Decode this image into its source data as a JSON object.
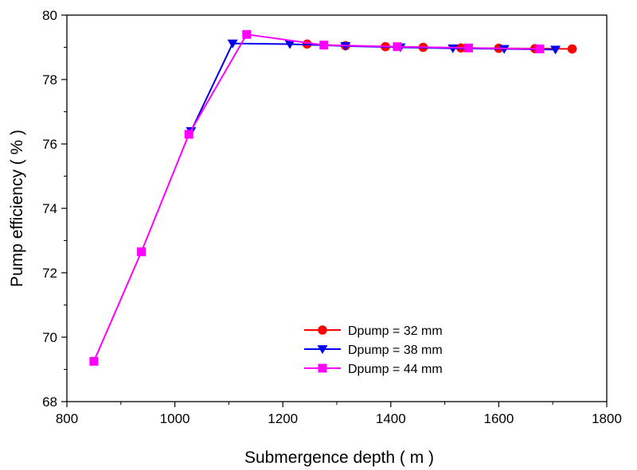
{
  "chart_data": {
    "type": "line",
    "xlabel": "Submergence depth ( m )",
    "ylabel": "Pump efficiency ( % )",
    "xlim": [
      800,
      1800
    ],
    "ylim": [
      68,
      80
    ],
    "xticks": [
      "800",
      "1000",
      "1200",
      "1400",
      "1600",
      "1800"
    ],
    "yticks": [
      "68",
      "70",
      "72",
      "74",
      "76",
      "78",
      "80"
    ],
    "grid": false,
    "legend_position": "lower-right",
    "series": [
      {
        "name": "Dpump = 32 mm",
        "color": "#ff0000",
        "marker": "circle",
        "x": [
          1245,
          1316,
          1390,
          1460,
          1530,
          1600,
          1667,
          1736
        ],
        "y": [
          79.1,
          79.05,
          79.02,
          79.0,
          78.98,
          78.97,
          78.96,
          78.95
        ]
      },
      {
        "name": "Dpump = 38 mm",
        "color": "#0000ee",
        "marker": "triangle-down",
        "x": [
          1030,
          1107,
          1213,
          1316,
          1418,
          1515,
          1610,
          1705
        ],
        "y": [
          76.4,
          79.12,
          79.1,
          79.04,
          79.0,
          78.97,
          78.95,
          78.93
        ]
      },
      {
        "name": "Dpump = 44 mm",
        "color": "#ff00ff",
        "marker": "square",
        "x": [
          850,
          938,
          1026,
          1133,
          1276,
          1412,
          1544,
          1676
        ],
        "y": [
          69.25,
          72.65,
          76.3,
          79.4,
          79.07,
          79.02,
          78.98,
          78.95
        ]
      }
    ]
  }
}
